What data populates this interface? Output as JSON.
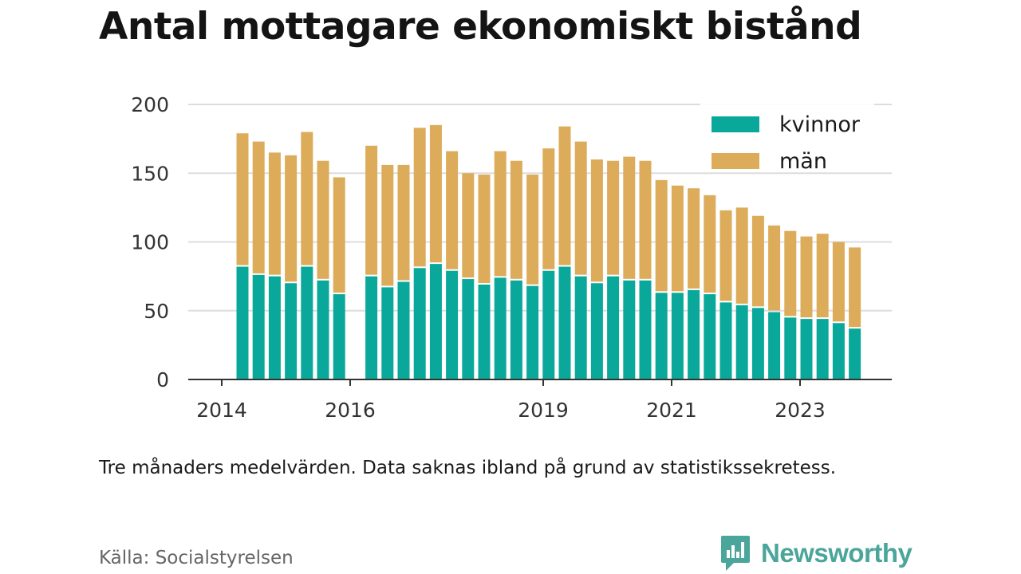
{
  "title": "Antal mottagare ekonomiskt bistånd",
  "note": "Tre månaders medelvärden. Data saknas ibland på grund av statistikssekretess.",
  "source": "Källa: Socialstyrelsen",
  "brand": {
    "name": "Newsworthy",
    "icon": "newsworthy-logo-icon"
  },
  "colors": {
    "kvinnor": "#0aa89b",
    "man": "#dcac5a",
    "grid": "#dddddd",
    "axis": "#333333"
  },
  "chart_data": {
    "type": "bar",
    "stacked": true,
    "ylim": [
      0,
      200
    ],
    "yticks": [
      "0",
      "50",
      "100",
      "150",
      "200"
    ],
    "xticks": [
      "2014",
      "2016",
      "2019",
      "2021",
      "2023"
    ],
    "legend_position": "top-right",
    "grid": true,
    "series": [
      {
        "name": "kvinnor",
        "values": [
          82,
          76,
          75,
          70,
          82,
          72,
          62,
          null,
          75,
          67,
          71,
          81,
          84,
          79,
          73,
          69,
          74,
          72,
          68,
          79,
          82,
          75,
          70,
          75,
          72,
          72,
          63,
          63,
          65,
          62,
          56,
          54,
          52,
          49,
          45,
          44,
          44,
          41,
          37
        ]
      },
      {
        "name": "män",
        "values": [
          97,
          97,
          90,
          93,
          98,
          87,
          85,
          null,
          95,
          89,
          85,
          102,
          101,
          87,
          77,
          80,
          92,
          87,
          81,
          89,
          102,
          98,
          90,
          84,
          90,
          87,
          82,
          78,
          74,
          72,
          67,
          71,
          67,
          63,
          63,
          60,
          62,
          59,
          59
        ]
      }
    ]
  }
}
